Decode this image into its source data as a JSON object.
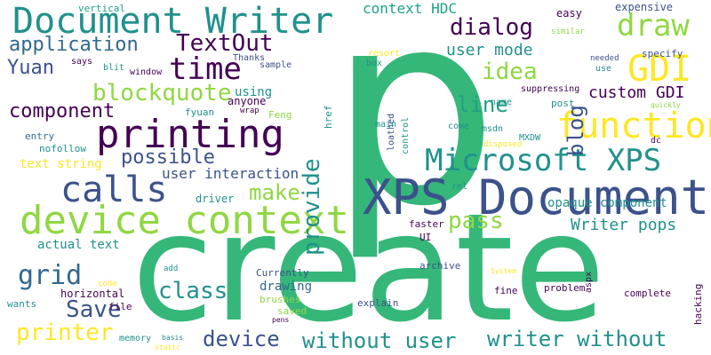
{
  "palette": {
    "background": "#ffffff",
    "teal": "#21918c",
    "green": "#35b779",
    "lime": "#90d743",
    "yellow": "#fde725",
    "navy": "#3b528b",
    "purple": "#440154",
    "darkblue": "#31688e",
    "seafoam": "#1fa187"
  },
  "words": [
    {
      "text": "p"
    },
    {
      "text": "create"
    },
    {
      "text": "Document Writer"
    },
    {
      "text": "device context"
    },
    {
      "text": "XPS Document"
    },
    {
      "text": "printing"
    },
    {
      "text": "function"
    },
    {
      "text": "calls"
    },
    {
      "text": "Microsoft XPS"
    },
    {
      "text": "time"
    },
    {
      "text": "draw"
    },
    {
      "text": "GDI"
    },
    {
      "text": "application"
    },
    {
      "text": "TextOut"
    },
    {
      "text": "dialog"
    },
    {
      "text": "context HDC"
    },
    {
      "text": "user mode"
    },
    {
      "text": "idea"
    },
    {
      "text": "blog"
    },
    {
      "text": "Yuan"
    },
    {
      "text": "blockquote"
    },
    {
      "text": "component"
    },
    {
      "text": "provide"
    },
    {
      "text": "line"
    },
    {
      "text": "custom GDI"
    },
    {
      "text": "possible"
    },
    {
      "text": "make"
    },
    {
      "text": "user interaction"
    },
    {
      "text": "opaque component"
    },
    {
      "text": "pass"
    },
    {
      "text": "Writer pops"
    },
    {
      "text": "grid"
    },
    {
      "text": "class"
    },
    {
      "text": "Save"
    },
    {
      "text": "printer"
    },
    {
      "text": "device"
    },
    {
      "text": "without user"
    },
    {
      "text": "writer without"
    },
    {
      "text": "text string"
    },
    {
      "text": "actual text"
    },
    {
      "text": "horizontal"
    },
    {
      "text": "drawing"
    },
    {
      "text": "expensive"
    },
    {
      "text": "easy"
    },
    {
      "text": "vertical"
    },
    {
      "text": "says"
    },
    {
      "text": "blit"
    },
    {
      "text": "window"
    },
    {
      "text": "Thanks"
    },
    {
      "text": "sample"
    },
    {
      "text": "using"
    },
    {
      "text": "anyone"
    },
    {
      "text": "fyuan"
    },
    {
      "text": "wrap"
    },
    {
      "text": "Feng"
    },
    {
      "text": "entry"
    },
    {
      "text": "nofollow"
    },
    {
      "text": "href"
    },
    {
      "text": "resort"
    },
    {
      "text": "box"
    },
    {
      "text": "loathed"
    },
    {
      "text": "control"
    },
    {
      "text": "main"
    },
    {
      "text": "come"
    },
    {
      "text": "msdn"
    },
    {
      "text": "disposed"
    },
    {
      "text": "MXDW"
    },
    {
      "text": "name"
    },
    {
      "text": "post"
    },
    {
      "text": "quickly"
    },
    {
      "text": "similar"
    },
    {
      "text": "needed"
    },
    {
      "text": "use"
    },
    {
      "text": "specify"
    },
    {
      "text": "suppressing"
    },
    {
      "text": "dc"
    },
    {
      "text": "driver"
    },
    {
      "text": "rel"
    },
    {
      "text": "faster"
    },
    {
      "text": "UI"
    },
    {
      "text": "archive"
    },
    {
      "text": "System"
    },
    {
      "text": "aspx"
    },
    {
      "text": "hacking"
    },
    {
      "text": "explain"
    },
    {
      "text": "fine"
    },
    {
      "text": "problem"
    },
    {
      "text": "complete"
    },
    {
      "text": "Currently"
    },
    {
      "text": "brushes"
    },
    {
      "text": "saved"
    },
    {
      "text": "pens"
    },
    {
      "text": "add"
    },
    {
      "text": "code"
    },
    {
      "text": "file"
    },
    {
      "text": "wants"
    },
    {
      "text": "memory"
    },
    {
      "text": "basis"
    },
    {
      "text": "static"
    }
  ]
}
